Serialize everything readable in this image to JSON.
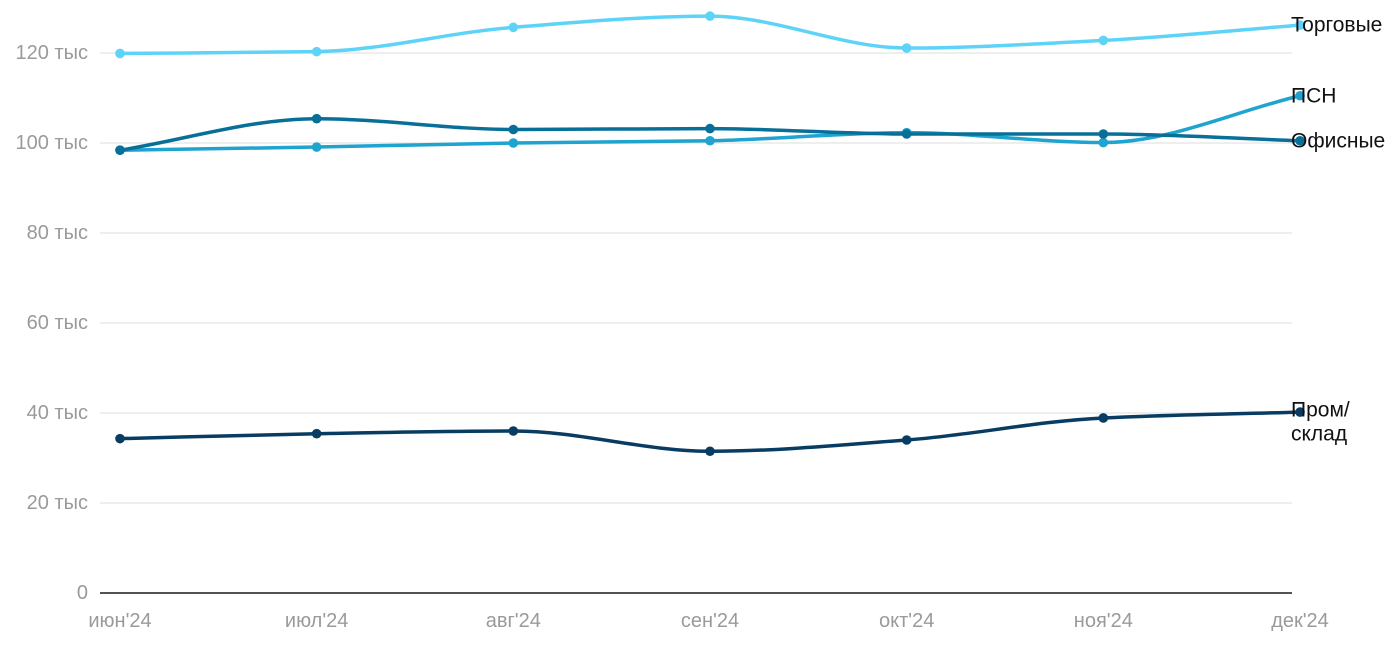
{
  "chart_data": {
    "type": "line",
    "x": [
      "июн'24",
      "июл'24",
      "авг'24",
      "сен'24",
      "окт'24",
      "ноя'24",
      "дек'24"
    ],
    "ylim": [
      0,
      130000
    ],
    "yticks": [
      0,
      20000,
      40000,
      60000,
      80000,
      100000,
      120000
    ],
    "ytick_labels": [
      "0",
      "20 тыс",
      "40 тыс",
      "60 тыс",
      "80 тыс",
      "100 тыс",
      "120 тыс"
    ],
    "grid": true,
    "legend": "end-of-line labels",
    "series": [
      {
        "name": "Торговые",
        "label_lines": [
          "Торговые"
        ],
        "color": "#5ed3f8",
        "values": [
          119900,
          120300,
          125700,
          128200,
          121100,
          122800,
          126200
        ]
      },
      {
        "name": "ПСН",
        "label_lines": [
          "ПСН"
        ],
        "color": "#1fa3cf",
        "values": [
          98400,
          99100,
          100000,
          100500,
          102300,
          100100,
          110500
        ]
      },
      {
        "name": "Офисные",
        "label_lines": [
          "Офисные"
        ],
        "color": "#086f99",
        "values": [
          98400,
          105400,
          103000,
          103200,
          102000,
          102000,
          100500
        ]
      },
      {
        "name": "Пром/склад",
        "label_lines": [
          "Пром/",
          "склад"
        ],
        "color": "#083c63",
        "values": [
          34300,
          35400,
          36000,
          31500,
          34000,
          38900,
          40200
        ]
      }
    ]
  }
}
